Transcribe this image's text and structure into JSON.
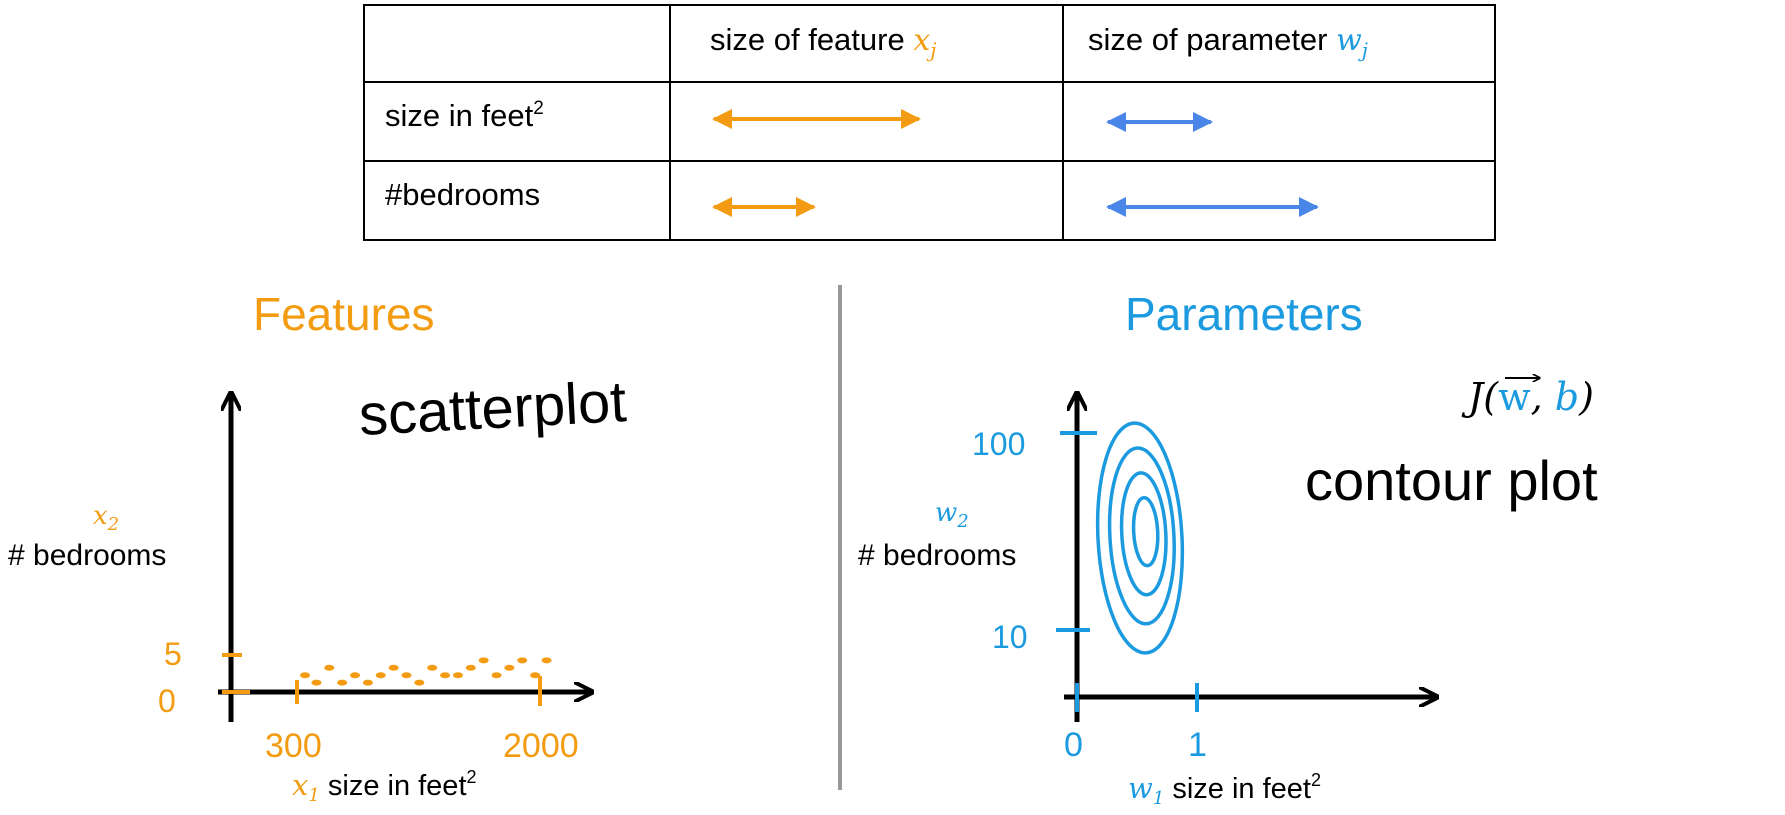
{
  "colors": {
    "features": "#f39c12",
    "parameters": "#1b9ae0",
    "table_arrow_blue": "#4a86e8",
    "ink": "#000000",
    "divider": "#999999"
  },
  "table": {
    "col_headers": [
      {
        "text": "size of feature ",
        "var": "x",
        "sub": "j"
      },
      {
        "text": "size of parameter ",
        "var": "w",
        "sub": "j"
      }
    ],
    "rows": [
      {
        "label": "size in feet",
        "sup": "2",
        "feature_arrow_relative": 1.0,
        "parameter_arrow_relative": 0.5
      },
      {
        "label": "#bedrooms",
        "sup": "",
        "feature_arrow_relative": 0.5,
        "parameter_arrow_relative": 1.0
      }
    ]
  },
  "features": {
    "title": "Features",
    "note": "scatterplot",
    "y_var": "x",
    "y_sub": "2",
    "y_label": "# bedrooms",
    "x_var": "x",
    "x_sub": "1",
    "x_label": " size in feet",
    "x_sup": "2",
    "y_ticks": [
      "5",
      "0"
    ],
    "x_ticks": [
      "300",
      "2000"
    ]
  },
  "parameters": {
    "title": "Parameters",
    "cost_j": "J(",
    "cost_w": "w",
    "cost_comma": ", ",
    "cost_b": "b",
    "cost_close": ")",
    "note": "contour plot",
    "y_var": "w",
    "y_sub": "2",
    "y_label": "# bedrooms",
    "x_var": "w",
    "x_sub": "1",
    "x_label": " size in feet",
    "x_sup": "2",
    "y_ticks": [
      "100",
      "10"
    ],
    "x_ticks": [
      "0",
      "1"
    ]
  },
  "chart_data": [
    {
      "type": "scatter",
      "x": [
        300,
        380,
        470,
        560,
        650,
        740,
        830,
        920,
        1010,
        1100,
        1190,
        1280,
        1370,
        1460,
        1550,
        1640,
        1730,
        1820,
        1910,
        1990
      ],
      "y": [
        2,
        1,
        3,
        1,
        2,
        1,
        2,
        3,
        2,
        1,
        3,
        2,
        2,
        3,
        4,
        2,
        3,
        4,
        2,
        4
      ],
      "xticks": [
        300,
        2000
      ],
      "yticks": [
        0,
        5
      ],
      "xlim": [
        0,
        2000
      ],
      "ylim": [
        0,
        5
      ]
    },
    {
      "type": "contour",
      "xticks": [
        0,
        1
      ],
      "yticks": [
        10,
        100
      ],
      "levels": 4
    }
  ]
}
